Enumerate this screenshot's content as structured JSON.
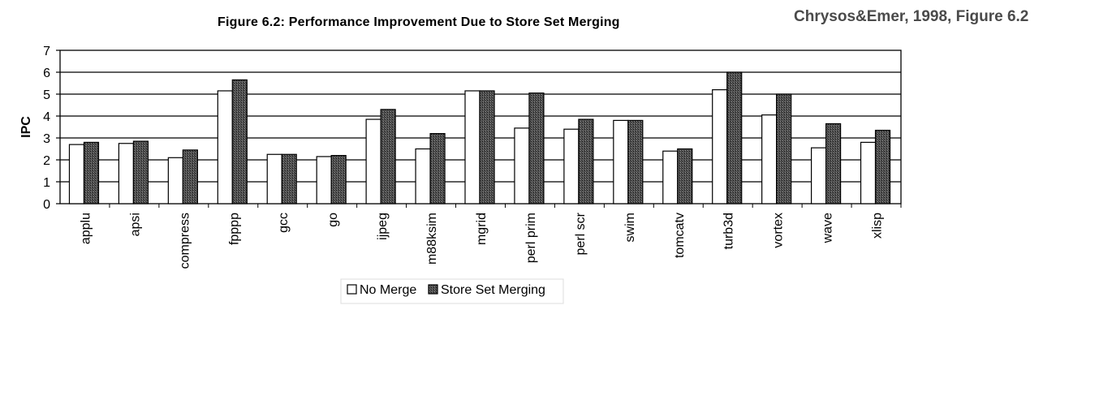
{
  "figure_title": "Figure 6.2: Performance Improvement Due to Store Set Merging",
  "citation": "Chrysos&Emer, 1998, Figure 6.2",
  "chart_data": {
    "type": "bar",
    "title": "Figure 6.2: Performance Improvement Due to Store Set Merging",
    "xlabel": "",
    "ylabel": "IPC",
    "ylim": [
      0,
      7
    ],
    "yticks": [
      "0",
      "1",
      "2",
      "3",
      "4",
      "5",
      "6",
      "7"
    ],
    "grid": true,
    "legend_position": "bottom-center",
    "categories": [
      "applu",
      "apsi",
      "compress",
      "fpppp",
      "gcc",
      "go",
      "ijpeg",
      "m88ksim",
      "mgrid",
      "perl prim",
      "perl scr",
      "swim",
      "tomcatv",
      "turb3d",
      "vortex",
      "wave",
      "xlisp"
    ],
    "series": [
      {
        "name": "No Merge",
        "color": "#ffffff",
        "values": [
          2.7,
          2.75,
          2.1,
          5.15,
          2.25,
          2.15,
          3.85,
          2.5,
          5.15,
          3.45,
          3.4,
          3.8,
          2.4,
          5.2,
          4.05,
          2.55,
          2.8
        ]
      },
      {
        "name": "Store Set Merging",
        "color": "#4d4d4d",
        "values": [
          2.8,
          2.85,
          2.45,
          5.65,
          2.25,
          2.2,
          4.3,
          3.2,
          5.15,
          5.05,
          3.85,
          3.8,
          2.5,
          6.0,
          5.0,
          3.65,
          3.35
        ]
      }
    ]
  }
}
